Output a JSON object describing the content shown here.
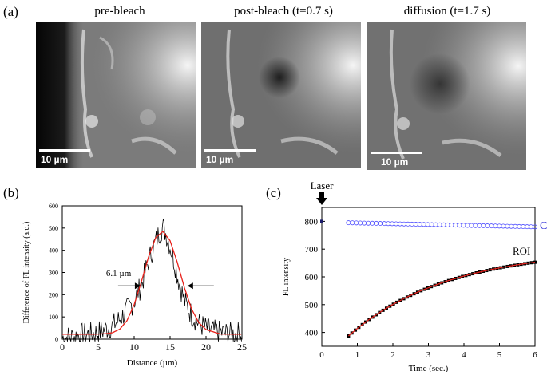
{
  "panel_a": {
    "label": "(a)",
    "images": [
      {
        "title": "pre-bleach",
        "scale_text": "10 µm",
        "bleached": false,
        "diffused": false
      },
      {
        "title": "post-bleach (t=0.7 s)",
        "scale_text": "10 µm",
        "bleached": true,
        "diffused": false
      },
      {
        "title": "diffusion (t=1.7 s)",
        "scale_text": "10 µm",
        "bleached": true,
        "diffused": true
      }
    ]
  },
  "panel_b": {
    "label": "(b)",
    "annotation": "6.1 µm"
  },
  "panel_c": {
    "label": "(c)",
    "laser_label": "Laser",
    "control_label": "Control",
    "roi_label": "ROI"
  },
  "colors": {
    "data_line": "#000000",
    "fit_line": "#e8201a",
    "control_marker": "#4a4aff",
    "control_text": "#2b2bd6",
    "microscope_bg": "#5a5a5a"
  },
  "chart_data": [
    {
      "type": "line",
      "id": "b",
      "xlabel": "Distance (µm)",
      "ylabel": "Difference of FL intensity (a.u.)",
      "xlim": [
        0,
        25
      ],
      "ylim": [
        0,
        600
      ],
      "xticks": [
        0,
        5,
        10,
        15,
        20,
        25
      ],
      "yticks": [
        0,
        100,
        200,
        300,
        400,
        500,
        600
      ],
      "series": [
        {
          "role": "data",
          "x": [
            0,
            1,
            2,
            3,
            4,
            5,
            6,
            7,
            8,
            9,
            10,
            10.5,
            11,
            11.5,
            12,
            12.5,
            13,
            13.5,
            14,
            14.5,
            15,
            15.5,
            16,
            16.5,
            17,
            18,
            19,
            20,
            21,
            22,
            23,
            24,
            25
          ],
          "y": [
            5,
            10,
            15,
            20,
            25,
            30,
            45,
            60,
            90,
            130,
            170,
            210,
            240,
            300,
            350,
            400,
            440,
            480,
            505,
            470,
            420,
            360,
            290,
            230,
            170,
            110,
            70,
            50,
            35,
            30,
            25,
            25,
            25
          ]
        },
        {
          "role": "fit",
          "x": [
            0,
            2,
            4,
            6,
            7,
            8,
            9,
            10,
            11,
            12,
            13,
            14,
            15,
            16,
            17,
            18,
            19,
            20,
            22,
            25
          ],
          "y": [
            22,
            22,
            22,
            24,
            29,
            45,
            83,
            155,
            258,
            370,
            457,
            485,
            443,
            346,
            231,
            135,
            74,
            43,
            23,
            22
          ]
        }
      ],
      "annotations": [
        {
          "text": "6.1 µm",
          "x1": 11.1,
          "x2": 17.2,
          "y": 240
        }
      ]
    },
    {
      "type": "scatter",
      "id": "c",
      "xlabel": "Time (sec.)",
      "ylabel": "FL intensity",
      "xlim": [
        0,
        6
      ],
      "ylim": [
        350,
        850
      ],
      "xticks": [
        0,
        1,
        2,
        3,
        4,
        5,
        6
      ],
      "yticks": [
        400,
        500,
        600,
        700,
        800
      ],
      "series": [
        {
          "name": "Control",
          "x_start": 0.75,
          "x_end": 6.0,
          "y_start": 795,
          "y_end": 780,
          "count": 48
        },
        {
          "name": "ROI",
          "pre_bleach": {
            "x": 0.0,
            "y": 800
          },
          "x_start": 0.75,
          "x_end": 6.0,
          "y_start": 385,
          "plateau": 700,
          "rate": 0.36,
          "count": 55
        }
      ]
    }
  ]
}
